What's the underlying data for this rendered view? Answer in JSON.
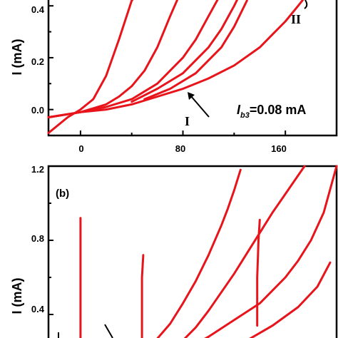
{
  "chart_data": [
    {
      "type": "line",
      "ylabel": "I (mA)",
      "xlim": [
        -25,
        200
      ],
      "ylim": [
        -0.1,
        0.45
      ],
      "x_ticks": [
        "0",
        "80",
        "160"
      ],
      "y_ticks": [
        "0.4",
        "0.2",
        "0.0"
      ],
      "annotations": {
        "label_I": "I",
        "label_II": "II",
        "bias_symbol": "I",
        "bias_subscript": "b3",
        "bias_value": "=0.08 mA"
      },
      "color": "#e8141b",
      "series": [
        {
          "x": [
            -25,
            -10,
            0,
            10,
            20,
            30,
            40,
            45
          ],
          "y": [
            -0.09,
            -0.03,
            0.0,
            0.04,
            0.13,
            0.27,
            0.42,
            0.45
          ]
        },
        {
          "x": [
            -25,
            0,
            20,
            30,
            40,
            50,
            60,
            70,
            78
          ],
          "y": [
            -0.03,
            -0.01,
            0.02,
            0.05,
            0.09,
            0.15,
            0.24,
            0.36,
            0.45
          ]
        },
        {
          "x": [
            -25,
            0,
            20,
            40,
            60,
            80,
            90,
            100,
            110
          ],
          "y": [
            -0.03,
            -0.01,
            0.01,
            0.04,
            0.1,
            0.2,
            0.27,
            0.36,
            0.45
          ]
        },
        {
          "x": [
            40,
            60,
            80,
            100,
            110,
            120,
            125
          ],
          "y": [
            0.03,
            0.08,
            0.14,
            0.24,
            0.31,
            0.4,
            0.45
          ]
        },
        {
          "x": [
            50,
            70,
            90,
            110,
            120,
            130
          ],
          "y": [
            0.04,
            0.08,
            0.14,
            0.24,
            0.32,
            0.42
          ]
        },
        {
          "x": [
            -25,
            0,
            20,
            40,
            60,
            80,
            100,
            120,
            140,
            150,
            160,
            170,
            178
          ],
          "y": [
            -0.03,
            -0.01,
            0.0,
            0.02,
            0.05,
            0.08,
            0.12,
            0.17,
            0.24,
            0.29,
            0.34,
            0.4,
            0.45
          ]
        }
      ]
    },
    {
      "type": "line",
      "ylabel": "I (mA)",
      "panel_label": "(b)",
      "xlim": [
        -25,
        200
      ],
      "ylim": [
        0.2,
        1.2
      ],
      "y_ticks": [
        "1.2",
        "0.8",
        "0.4"
      ],
      "color": "#e8141b",
      "series": [
        {
          "x": [
            0,
            0,
            0,
            0,
            0
          ],
          "y": [
            0.2,
            0.4,
            0.6,
            0.8,
            0.92
          ]
        },
        {
          "x": [
            48,
            48,
            48,
            49
          ],
          "y": [
            0.2,
            0.4,
            0.6,
            0.72
          ]
        },
        {
          "x": [
            70,
            80,
            90,
            100,
            110,
            120,
            130,
            140,
            150,
            160,
            170,
            175
          ],
          "y": [
            0.2,
            0.26,
            0.33,
            0.42,
            0.52,
            0.62,
            0.73,
            0.84,
            0.95,
            1.05,
            1.15,
            1.2
          ]
        },
        {
          "x": [
            50,
            60,
            70,
            80,
            90,
            100,
            110,
            115,
            120,
            125
          ],
          "y": [
            0.2,
            0.27,
            0.35,
            0.46,
            0.58,
            0.72,
            0.88,
            0.97,
            1.07,
            1.18
          ]
        },
        {
          "x": [
            80,
            100,
            120,
            140,
            160,
            170,
            180,
            190,
            200
          ],
          "y": [
            0.2,
            0.28,
            0.37,
            0.46,
            0.6,
            0.69,
            0.8,
            0.95,
            1.2
          ]
        },
        {
          "x": [
            110,
            130,
            150,
            170,
            185,
            195
          ],
          "y": [
            0.2,
            0.26,
            0.34,
            0.44,
            0.55,
            0.68
          ]
        },
        {
          "x": [
            138,
            138,
            139,
            140
          ],
          "y": [
            0.34,
            0.6,
            0.8,
            0.91
          ]
        }
      ]
    }
  ]
}
